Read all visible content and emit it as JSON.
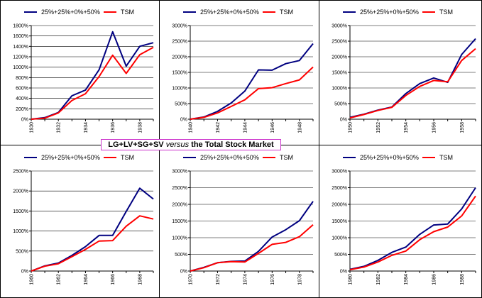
{
  "title": {
    "part1": "LG+LV+SG+SV",
    "versus": "versus",
    "part2": "the Total Stock Market"
  },
  "colors": {
    "series1": "#000080",
    "series2": "#ff0000",
    "grid": "#000000",
    "border": "#000000",
    "title_border": "#cc33cc"
  },
  "chart_data": [
    {
      "type": "line",
      "x": [
        1930,
        1931,
        1932,
        1933,
        1934,
        1935,
        1936,
        1937,
        1938,
        1939
      ],
      "xticks": [
        "1930",
        "1932",
        "1934",
        "1936",
        "1938"
      ],
      "yticks": [
        "0%",
        "200%",
        "400%",
        "600%",
        "800%",
        "1000%",
        "1200%",
        "1400%",
        "1600%",
        "1800%"
      ],
      "ylim": [
        0,
        1800
      ],
      "legend": [
        "25%+25%+0%+50%",
        "TSM"
      ],
      "series": [
        {
          "name": "25%+25%+0%+50%",
          "values": [
            0,
            30,
            130,
            450,
            560,
            950,
            1680,
            1020,
            1400,
            1470
          ]
        },
        {
          "name": "TSM",
          "values": [
            0,
            20,
            120,
            360,
            490,
            820,
            1230,
            880,
            1240,
            1380
          ]
        }
      ]
    },
    {
      "type": "line",
      "x": [
        1940,
        1941,
        1942,
        1943,
        1944,
        1945,
        1946,
        1947,
        1948,
        1949
      ],
      "xticks": [
        "1940",
        "1942",
        "1944",
        "1946",
        "1948"
      ],
      "yticks": [
        "0%",
        "500%",
        "1000%",
        "1500%",
        "2000%",
        "2500%",
        "3000%"
      ],
      "ylim": [
        0,
        3000
      ],
      "legend": [
        "25%+25%+0%+50%",
        "TSM"
      ],
      "series": [
        {
          "name": "25%+25%+0%+50%",
          "values": [
            0,
            70,
            250,
            520,
            900,
            1580,
            1570,
            1780,
            1880,
            2420
          ]
        },
        {
          "name": "TSM",
          "values": [
            0,
            60,
            200,
            410,
            620,
            980,
            1010,
            1140,
            1260,
            1670
          ]
        }
      ]
    },
    {
      "type": "line",
      "x": [
        1950,
        1951,
        1952,
        1953,
        1954,
        1955,
        1956,
        1957,
        1958,
        1959
      ],
      "xticks": [
        "1950",
        "1952",
        "1954",
        "1956",
        "1958"
      ],
      "yticks": [
        "0%",
        "500%",
        "1000%",
        "1500%",
        "2000%",
        "2500%",
        "3000%"
      ],
      "ylim": [
        0,
        3000
      ],
      "legend": [
        "25%+25%+0%+50%",
        "TSM"
      ],
      "series": [
        {
          "name": "25%+25%+0%+50%",
          "values": [
            60,
            160,
            290,
            390,
            820,
            1140,
            1320,
            1180,
            2070,
            2580
          ]
        },
        {
          "name": "TSM",
          "values": [
            40,
            150,
            280,
            380,
            760,
            1050,
            1240,
            1200,
            1880,
            2260
          ]
        }
      ]
    },
    {
      "type": "line",
      "x": [
        1960,
        1961,
        1962,
        1963,
        1964,
        1965,
        1966,
        1967,
        1968,
        1969
      ],
      "xticks": [
        "1960",
        "1962",
        "1964",
        "1966",
        "1968"
      ],
      "yticks": [
        "0%",
        "500%",
        "1000%",
        "1500%",
        "2000%",
        "2500%"
      ],
      "ylim": [
        0,
        2500
      ],
      "legend": [
        "25%+25%+0%+50%",
        "TSM"
      ],
      "series": [
        {
          "name": "25%+25%+0%+50%",
          "values": [
            0,
            130,
            200,
            390,
            610,
            890,
            890,
            1490,
            2070,
            1800
          ]
        },
        {
          "name": "TSM",
          "values": [
            0,
            120,
            180,
            360,
            540,
            750,
            760,
            1120,
            1380,
            1300
          ]
        }
      ]
    },
    {
      "type": "line",
      "x": [
        1970,
        1971,
        1972,
        1973,
        1974,
        1975,
        1976,
        1977,
        1978,
        1979
      ],
      "xticks": [
        "1970",
        "1972",
        "1974",
        "1976",
        "1978"
      ],
      "yticks": [
        "0%",
        "500%",
        "1000%",
        "1500%",
        "2000%",
        "2500%",
        "3000%"
      ],
      "ylim": [
        0,
        3000
      ],
      "legend": [
        "25%+25%+0%+50%",
        "TSM"
      ],
      "series": [
        {
          "name": "25%+25%+0%+50%",
          "values": [
            0,
            110,
            250,
            290,
            300,
            590,
            1020,
            1240,
            1510,
            2090
          ]
        },
        {
          "name": "TSM",
          "values": [
            0,
            100,
            250,
            280,
            270,
            530,
            800,
            860,
            1030,
            1390
          ]
        }
      ]
    },
    {
      "type": "line",
      "x": [
        1980,
        1981,
        1982,
        1983,
        1984,
        1985,
        1986,
        1987,
        1988,
        1989
      ],
      "xticks": [
        "1980",
        "1982",
        "1984",
        "1986",
        "1988"
      ],
      "yticks": [
        "0%",
        "500%",
        "1000%",
        "1500%",
        "2000%",
        "2500%",
        "3000%"
      ],
      "ylim": [
        0,
        3000
      ],
      "legend": [
        "25%+25%+0%+50%",
        "TSM"
      ],
      "series": [
        {
          "name": "25%+25%+0%+50%",
          "values": [
            50,
            140,
            320,
            560,
            720,
            1100,
            1380,
            1410,
            1860,
            2500
          ]
        },
        {
          "name": "TSM",
          "values": [
            40,
            120,
            270,
            470,
            600,
            940,
            1180,
            1320,
            1650,
            2250
          ]
        }
      ]
    }
  ]
}
